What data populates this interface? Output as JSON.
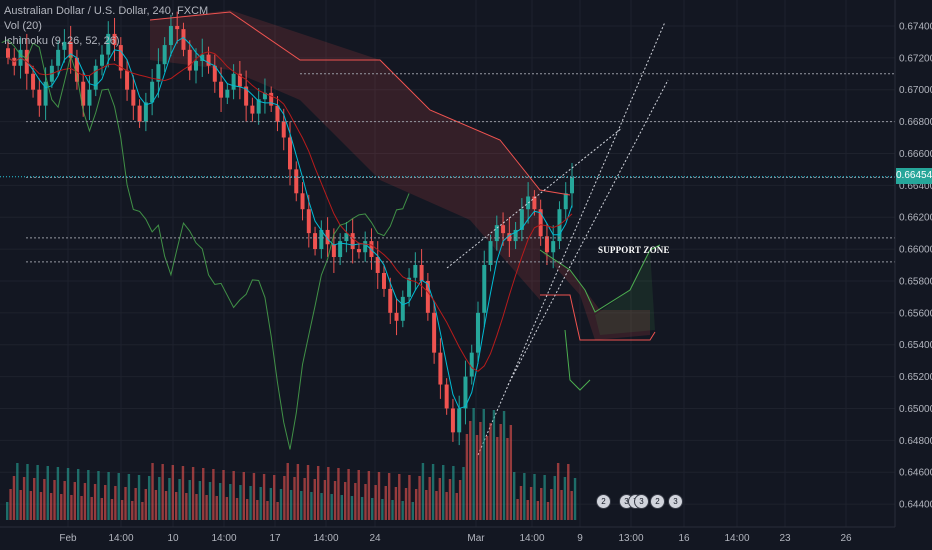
{
  "legend": {
    "symbol": "Australian Dollar / U.S. Dollar, 240, FXCM",
    "vol": "Vol (20)",
    "ichimoku": "Ichimoku (9, 26, 52, 26)"
  },
  "colors": {
    "background": "#131722",
    "up": "#26a69a",
    "down": "#ef5350",
    "price_line": "#26c6da",
    "tenkan": "#00bcd4",
    "kijun": "#b71c1c",
    "lagging": "#4caf50",
    "span_a": "#4caf50",
    "span_b": "#ef5350"
  },
  "annotation": {
    "support_zone": "SUPPORT ZONE"
  },
  "events": [
    "2",
    "3",
    "7",
    "3",
    "2",
    "3"
  ],
  "chart_data": {
    "type": "candlestick",
    "title": "Australian Dollar / U.S. Dollar, 240, FXCM",
    "y_axis": {
      "range": [
        0.643,
        0.675
      ],
      "ticks": [
        "0.67400",
        "0.67200",
        "0.67000",
        "0.66800",
        "0.66600",
        "0.66400",
        "0.66200",
        "0.66000",
        "0.65800",
        "0.65600",
        "0.65400",
        "0.65200",
        "0.65000",
        "0.64800",
        "0.64600",
        "0.64400"
      ],
      "position": "right"
    },
    "x_axis": {
      "ticks": [
        "Feb",
        "14:00",
        "10",
        "14:00",
        "17",
        "14:00",
        "24",
        "Mar",
        "14:00",
        "9",
        "13:00",
        "16",
        "14:00",
        "23",
        "26"
      ]
    },
    "current_price": "0.66454",
    "price_path": [
      0.672,
      0.6715,
      0.6725,
      0.671,
      0.67,
      0.669,
      0.6705,
      0.6715,
      0.6725,
      0.673,
      0.672,
      0.6705,
      0.669,
      0.67,
      0.6715,
      0.6722,
      0.6735,
      0.6728,
      0.6712,
      0.67,
      0.669,
      0.668,
      0.6692,
      0.6705,
      0.6716,
      0.6728,
      0.674,
      0.6738,
      0.6725,
      0.6712,
      0.6718,
      0.6722,
      0.6715,
      0.6705,
      0.6695,
      0.67,
      0.671,
      0.6702,
      0.669,
      0.6685,
      0.6694,
      0.6698,
      0.669,
      0.668,
      0.667,
      0.665,
      0.6635,
      0.6625,
      0.661,
      0.66,
      0.6612,
      0.6603,
      0.6595,
      0.6605,
      0.661,
      0.66,
      0.6598,
      0.6605,
      0.6595,
      0.6585,
      0.6575,
      0.656,
      0.6555,
      0.657,
      0.6582,
      0.659,
      0.658,
      0.656,
      0.6535,
      0.6515,
      0.65,
      0.6485,
      0.65,
      0.652,
      0.6535,
      0.656,
      0.659,
      0.6605,
      0.6615,
      0.661,
      0.6605,
      0.6612,
      0.6625,
      0.6633,
      0.6625,
      0.6608,
      0.6598,
      0.6605,
      0.6625,
      0.6635,
      0.6645
    ],
    "horizontal_levels": [
      0.671,
      0.668,
      0.6645,
      0.6607,
      0.6592
    ],
    "support_zone": [
      0.6592,
      0.6607
    ]
  }
}
